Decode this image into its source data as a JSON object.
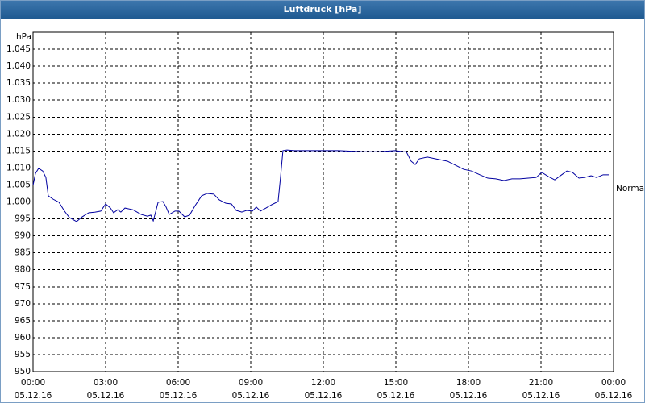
{
  "chart_data": {
    "type": "line",
    "title": "Luftdruck [hPa]",
    "y_label": "hPa",
    "annotation": "Normal",
    "color": "#0000a0",
    "grid": true,
    "xlim": [
      0,
      24
    ],
    "ylim": [
      950,
      1050
    ],
    "xticks": [
      {
        "value": 0,
        "label": "00:00"
      },
      {
        "value": 3,
        "label": "03:00"
      },
      {
        "value": 6,
        "label": "06:00"
      },
      {
        "value": 9,
        "label": "09:00"
      },
      {
        "value": 12,
        "label": "12:00"
      },
      {
        "value": 15,
        "label": "15:00"
      },
      {
        "value": 18,
        "label": "18:00"
      },
      {
        "value": 21,
        "label": "21:00"
      },
      {
        "value": 24,
        "label": "00:00"
      }
    ],
    "xtick_dates": [
      "05.12.16",
      "05.12.16",
      "05.12.16",
      "05.12.16",
      "05.12.16",
      "05.12.16",
      "05.12.16",
      "05.12.16",
      "06.12.16"
    ],
    "yticks": [
      950,
      955,
      960,
      965,
      970,
      975,
      980,
      985,
      990,
      995,
      {
        "value": 1000,
        "label": "1.000"
      },
      {
        "value": 1005,
        "label": "1.005"
      },
      {
        "value": 1010,
        "label": "1.010"
      },
      {
        "value": 1015,
        "label": "1.015"
      },
      {
        "value": 1020,
        "label": "1.020"
      },
      {
        "value": 1025,
        "label": "1.025"
      },
      {
        "value": 1030,
        "label": "1.030"
      },
      {
        "value": 1035,
        "label": "1.035"
      },
      {
        "value": 1040,
        "label": "1.040"
      },
      {
        "value": 1045,
        "label": "1.045"
      }
    ],
    "x": [
      0,
      0.1,
      0.23,
      0.4,
      0.53,
      0.63,
      0.83,
      1.07,
      1.3,
      1.5,
      1.8,
      2.03,
      2.3,
      2.57,
      2.8,
      3.0,
      3.2,
      3.33,
      3.5,
      3.63,
      3.8,
      4.13,
      4.47,
      4.73,
      4.87,
      4.97,
      5.17,
      5.37,
      5.5,
      5.63,
      5.87,
      6.03,
      6.27,
      6.47,
      6.7,
      6.97,
      7.2,
      7.47,
      7.7,
      7.97,
      8.2,
      8.4,
      8.63,
      8.83,
      9.07,
      9.23,
      9.4,
      9.63,
      9.87,
      10.13,
      10.23,
      10.33,
      10.5,
      10.8,
      11.3,
      12.63,
      13.63,
      14.3,
      14.97,
      15.3,
      15.43,
      15.63,
      15.8,
      15.97,
      16.3,
      16.63,
      17.13,
      17.47,
      17.8,
      18.13,
      18.47,
      18.8,
      19.13,
      19.47,
      19.8,
      20.13,
      20.47,
      20.8,
      21.03,
      21.3,
      21.57,
      21.8,
      22.07,
      22.3,
      22.57,
      22.8,
      23.07,
      23.3,
      23.57,
      23.8
    ],
    "values": [
      1004.9,
      1008.4,
      1009.9,
      1009.1,
      1007.2,
      1001.8,
      1000.8,
      999.9,
      997.3,
      995.4,
      994.2,
      995.6,
      996.8,
      997.0,
      997.3,
      999.4,
      998.2,
      996.8,
      997.7,
      997.0,
      998.2,
      997.7,
      996.3,
      995.8,
      996.1,
      994.4,
      999.9,
      1000.1,
      998.5,
      996.3,
      997.3,
      997.3,
      995.6,
      996.1,
      998.9,
      1001.8,
      1002.5,
      1002.3,
      1000.6,
      999.6,
      999.4,
      997.5,
      997.0,
      997.5,
      997.3,
      998.5,
      997.3,
      998.2,
      999.2,
      1000.1,
      1007.2,
      1015.1,
      1015.3,
      1015.1,
      1015.1,
      1015.1,
      1014.8,
      1014.8,
      1015.1,
      1014.8,
      1014.8,
      1012.0,
      1011.0,
      1012.7,
      1013.2,
      1012.7,
      1012.0,
      1010.8,
      1009.6,
      1009.1,
      1008.0,
      1007.0,
      1006.8,
      1006.3,
      1006.8,
      1006.8,
      1007.0,
      1007.2,
      1008.7,
      1007.5,
      1006.5,
      1007.7,
      1009.1,
      1008.7,
      1007.0,
      1007.2,
      1007.7,
      1007.2,
      1008.0,
      1008.0
    ]
  }
}
